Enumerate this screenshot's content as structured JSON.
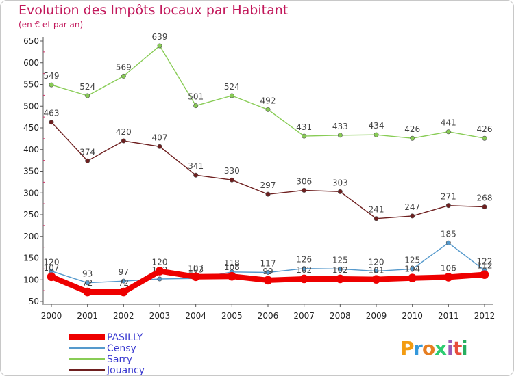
{
  "title": "Evolution des Impôts locaux par Habitant",
  "subtitle": "(en € et par an)",
  "brand": {
    "text": "Proxiti",
    "letters": [
      "P",
      "r",
      "o",
      "x",
      "i",
      "t",
      "i"
    ],
    "colors": [
      "#f39c12",
      "#3498db",
      "#e67e22",
      "#2ecc71",
      "#9b59b6",
      "#e74c3c",
      "#27ae60"
    ]
  },
  "chart_data": {
    "type": "line",
    "title": "Evolution des Impôts locaux par Habitant",
    "subtitle": "(en € et par an)",
    "xlabel": "",
    "ylabel": "",
    "x": [
      "2000",
      "2001",
      "2002",
      "2003",
      "2004",
      "2005",
      "2006",
      "2007",
      "2008",
      "2009",
      "2010",
      "2011",
      "2012"
    ],
    "ylim": [
      50,
      650
    ],
    "yticks": [
      50,
      100,
      150,
      200,
      250,
      300,
      350,
      400,
      450,
      500,
      550,
      600,
      650
    ],
    "grid": false,
    "legend_position": "bottom-left",
    "series": [
      {
        "name": "PASILLY",
        "color": "#ee0000",
        "values": [
          107,
          72,
          72,
          120,
          107,
          108,
          99,
          102,
          102,
          101,
          104,
          106,
          112
        ],
        "labels": [
          "107",
          "72",
          "72",
          "120",
          "107",
          "108",
          "99",
          "102",
          "102",
          "101",
          "104",
          "106",
          "112"
        ]
      },
      {
        "name": "Censy",
        "color": "#5599cc",
        "values": [
          120,
          93,
          97,
          102,
          103,
          118,
          117,
          126,
          125,
          120,
          125,
          185,
          122
        ],
        "labels": [
          "120",
          "93",
          "97",
          "102",
          "103",
          "118",
          "117",
          "126",
          "125",
          "120",
          "125",
          "185",
          "122"
        ]
      },
      {
        "name": "Sarry",
        "color": "#88cc55",
        "values": [
          549,
          524,
          569,
          639,
          501,
          524,
          492,
          431,
          433,
          434,
          426,
          441,
          426
        ],
        "labels": [
          "549",
          "524",
          "569",
          "639",
          "501",
          "524",
          "492",
          "431",
          "433",
          "434",
          "426",
          "441",
          "426"
        ]
      },
      {
        "name": "Jouancy",
        "color": "#6e1f1f",
        "values": [
          463,
          374,
          420,
          407,
          341,
          330,
          297,
          306,
          303,
          241,
          247,
          271,
          268
        ],
        "labels": [
          "463",
          "374",
          "420",
          "407",
          "341",
          "330",
          "297",
          "306",
          "303",
          "241",
          "247",
          "271",
          "268"
        ]
      }
    ]
  }
}
